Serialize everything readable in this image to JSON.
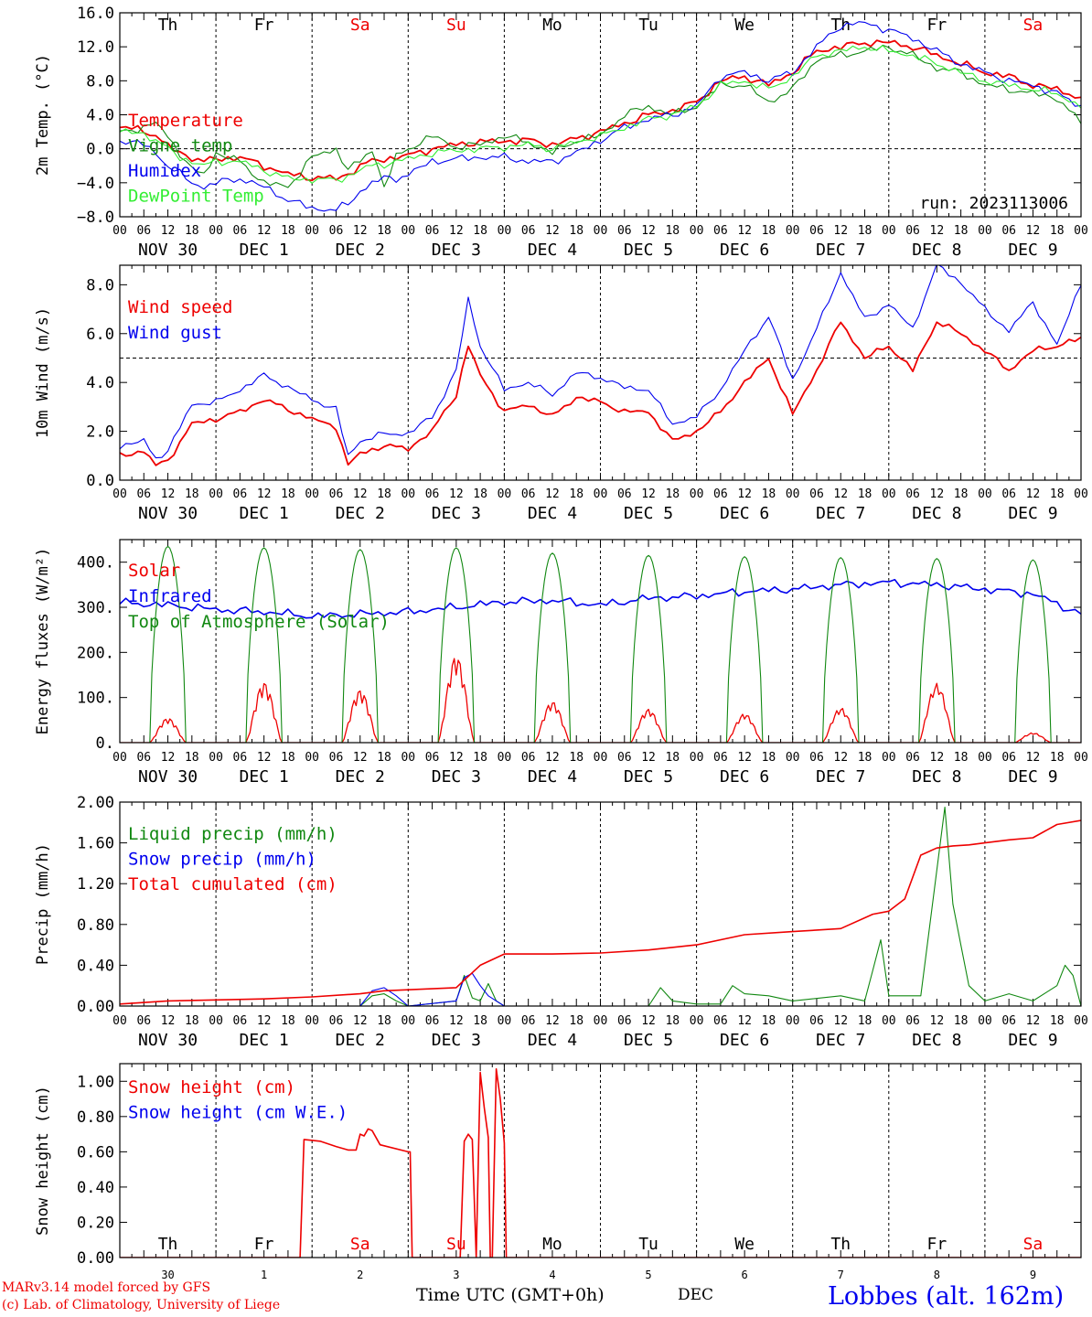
{
  "colors": {
    "red": "#ee0000",
    "blue": "#0000ee",
    "dark_green": "#118811",
    "light_green": "#33ee33",
    "axis": "#000000",
    "weekend": "#ee0000"
  },
  "days": [
    "Th",
    "Fr",
    "Sa",
    "Su",
    "Mo",
    "Tu",
    "We",
    "Th",
    "Fr",
    "Sa"
  ],
  "weekend_days": [
    "Sa",
    "Su"
  ],
  "hour_labels": [
    "00",
    "06",
    "12",
    "18"
  ],
  "date_labels": [
    "NOV 30",
    "DEC  1",
    "DEC  2",
    "DEC  3",
    "DEC  4",
    "DEC  5",
    "DEC  6",
    "DEC  7",
    "DEC  8",
    "DEC  9"
  ],
  "bottom_day_numbers": [
    "30",
    "1",
    "2",
    "3",
    "4",
    "5",
    "6",
    "7",
    "8",
    "9"
  ],
  "footer": {
    "model_line1": "MARv3.14 model forced by GFS",
    "model_line2": "(c) Lab. of Climatology, University of Liege",
    "xlabel": "Time UTC (GMT+0h)",
    "month": "DEC",
    "station": "Lobbes (alt. 162m)"
  },
  "chart_data": [
    {
      "type": "line",
      "ylabel": "2m Temp. (°C)",
      "ylim": [
        -8,
        16
      ],
      "yticks": [
        -8,
        -4,
        0,
        4,
        8,
        12,
        16
      ],
      "ytick_labels": [
        "−8.0",
        "−4.0",
        "0.0",
        "4.0",
        "8.0",
        "12.0",
        "16.0"
      ],
      "reference_line": 0,
      "annotation": "run: 2023113006",
      "x_unit": "hours since Nov 30 00 UTC",
      "x": [
        0,
        6,
        9,
        12,
        15,
        18,
        21,
        24,
        30,
        36,
        42,
        48,
        54,
        57,
        60,
        63,
        66,
        69,
        72,
        78,
        84,
        90,
        96,
        102,
        108,
        114,
        120,
        126,
        132,
        138,
        144,
        150,
        156,
        162,
        168,
        174,
        180,
        186,
        192,
        198,
        204,
        210,
        216,
        222,
        228,
        234,
        240
      ],
      "series": [
        {
          "name": "Temperature",
          "color": "red",
          "width": 1.8,
          "values": [
            2.5,
            2.2,
            1.5,
            0.3,
            -0.5,
            -1.0,
            -1.5,
            -1.2,
            -1.0,
            -2.0,
            -3.0,
            -3.4,
            -3.5,
            -3.0,
            -2.0,
            -1.5,
            -1.2,
            -1.0,
            -0.8,
            0.0,
            0.5,
            0.8,
            0.9,
            1.0,
            0.5,
            1.2,
            2.0,
            3.0,
            4.0,
            4.5,
            5.5,
            8.0,
            8.5,
            7.5,
            9.0,
            11.5,
            12.0,
            12.5,
            12.5,
            12.0,
            11.0,
            10.0,
            9.0,
            8.5,
            7.5,
            7.0,
            6.0
          ]
        },
        {
          "name": "Vigne temp",
          "color": "dark_green",
          "width": 1.1,
          "values": [
            2.0,
            2.5,
            3.0,
            1.5,
            -0.5,
            -2.5,
            -3.0,
            -0.5,
            -1.5,
            -4.0,
            -4.5,
            -1.0,
            0.0,
            -2.5,
            -1.5,
            0.0,
            -4.5,
            -1.0,
            0.0,
            1.5,
            0.2,
            0.5,
            1.5,
            0.8,
            -0.5,
            1.0,
            1.5,
            4.0,
            5.0,
            4.0,
            5.0,
            7.5,
            7.5,
            5.5,
            7.0,
            10.5,
            11.0,
            11.5,
            12.0,
            11.0,
            9.5,
            9.0,
            7.5,
            7.0,
            6.5,
            6.0,
            3.0
          ]
        },
        {
          "name": "Humidex",
          "color": "blue",
          "width": 1.1,
          "values": [
            1.0,
            0.5,
            -0.5,
            -2.0,
            -3.0,
            -4.0,
            -4.5,
            -4.0,
            -3.5,
            -4.5,
            -6.0,
            -7.0,
            -7.2,
            -6.5,
            -5.0,
            -4.0,
            -3.5,
            -3.5,
            -3.0,
            -1.5,
            -1.2,
            -1.0,
            -1.0,
            -1.5,
            -1.5,
            -0.5,
            1.0,
            2.5,
            3.5,
            4.0,
            5.0,
            8.5,
            9.0,
            8.0,
            9.0,
            12.0,
            14.5,
            14.8,
            14.0,
            13.0,
            11.5,
            10.0,
            9.0,
            8.0,
            7.5,
            6.5,
            5.0
          ]
        },
        {
          "name": "DewPoint Temp",
          "color": "light_green",
          "width": 1.1,
          "values": [
            2.0,
            1.8,
            1.0,
            0.0,
            -1.0,
            -1.5,
            -2.0,
            -1.5,
            -1.5,
            -2.5,
            -3.5,
            -3.6,
            -3.7,
            -3.2,
            -2.5,
            -2.0,
            -1.8,
            -1.5,
            -1.2,
            -0.5,
            -0.2,
            0.0,
            0.2,
            0.5,
            0.0,
            0.8,
            1.5,
            2.5,
            3.5,
            4.0,
            5.0,
            7.5,
            8.0,
            7.0,
            8.5,
            11.0,
            11.5,
            12.0,
            11.5,
            11.0,
            10.0,
            9.0,
            8.0,
            7.5,
            7.0,
            6.5,
            5.0
          ]
        }
      ],
      "legend_placement": "top-left"
    },
    {
      "type": "line",
      "ylabel": "10m Wind (m/s)",
      "ylim": [
        0,
        8.8
      ],
      "yticks": [
        0,
        2,
        4,
        6,
        8
      ],
      "ytick_labels": [
        "0.0",
        "2.0",
        "4.0",
        "6.0",
        "8.0"
      ],
      "reference_line": 5,
      "x_unit": "hours since Nov 30 00 UTC",
      "x": [
        0,
        6,
        9,
        12,
        18,
        24,
        30,
        36,
        42,
        48,
        54,
        57,
        60,
        66,
        72,
        78,
        81,
        84,
        87,
        90,
        96,
        102,
        108,
        114,
        120,
        126,
        132,
        138,
        144,
        150,
        156,
        162,
        168,
        174,
        180,
        186,
        192,
        198,
        204,
        210,
        216,
        222,
        228,
        234,
        240
      ],
      "series": [
        {
          "name": "Wind speed",
          "color": "red",
          "width": 1.8,
          "values": [
            1.0,
            1.2,
            0.6,
            0.8,
            2.3,
            2.5,
            2.8,
            3.3,
            2.9,
            2.5,
            2.2,
            0.6,
            1.1,
            1.4,
            1.3,
            2.0,
            2.8,
            3.5,
            5.5,
            4.3,
            2.8,
            3.1,
            2.6,
            3.4,
            3.2,
            2.8,
            2.8,
            1.6,
            2.0,
            2.8,
            4.0,
            5.0,
            2.7,
            4.5,
            6.5,
            5.0,
            5.5,
            4.5,
            6.5,
            6.0,
            5.3,
            4.5,
            5.3,
            5.5,
            5.8
          ]
        },
        {
          "name": "Wind gust",
          "color": "blue",
          "width": 1.1,
          "values": [
            1.4,
            1.6,
            0.9,
            1.2,
            3.1,
            3.2,
            3.7,
            4.3,
            3.8,
            3.3,
            2.9,
            1.0,
            1.6,
            1.9,
            1.9,
            2.6,
            3.5,
            4.5,
            7.4,
            5.5,
            3.7,
            4.0,
            3.5,
            4.4,
            4.2,
            3.8,
            3.7,
            2.3,
            2.6,
            3.7,
            5.3,
            6.7,
            4.1,
            6.2,
            8.5,
            6.6,
            7.2,
            6.2,
            8.8,
            8.1,
            7.0,
            6.1,
            7.3,
            5.5,
            8.1
          ]
        }
      ],
      "legend_placement": "top-left"
    },
    {
      "type": "line",
      "ylabel": "Energy fluxes (W/m²)",
      "ylim": [
        0,
        450
      ],
      "yticks": [
        0,
        100,
        200,
        300,
        400
      ],
      "ytick_labels": [
        "0.",
        "100.",
        "200.",
        "300.",
        "400."
      ],
      "x_unit": "hours since Nov 30 00 UTC",
      "series": [
        {
          "name": "Solar",
          "color": "red",
          "width": 1.3,
          "daily_peaks": [
            55,
            135,
            118,
            195,
            92,
            75,
            65,
            78,
            132,
            22
          ]
        },
        {
          "name": "Infrared",
          "color": "blue",
          "width": 1.6,
          "x": [
            0,
            12,
            24,
            36,
            48,
            60,
            72,
            84,
            96,
            108,
            120,
            132,
            144,
            156,
            168,
            180,
            192,
            204,
            216,
            228,
            240
          ],
          "values": [
            310,
            305,
            295,
            290,
            280,
            285,
            290,
            300,
            312,
            315,
            305,
            320,
            325,
            335,
            340,
            350,
            355,
            350,
            340,
            330,
            285
          ]
        },
        {
          "name": "Top of Atmosphere (Solar)",
          "color": "dark_green",
          "width": 1.1,
          "daily_peaks": [
            435,
            432,
            428,
            432,
            420,
            415,
            412,
            410,
            408,
            405
          ]
        }
      ],
      "legend_placement": "top-left"
    },
    {
      "type": "line",
      "ylabel": "Precip (mm/h)",
      "ylim": [
        0,
        2.0
      ],
      "yticks": [
        0,
        0.4,
        0.8,
        1.2,
        1.6,
        2.0
      ],
      "ytick_labels": [
        "0.00",
        "0.40",
        "0.80",
        "1.20",
        "1.60",
        "2.00"
      ],
      "x_unit": "hours since Nov 30 00 UTC",
      "series": [
        {
          "name": "Liquid precip (mm/h)",
          "color": "dark_green",
          "width": 1.1,
          "x": [
            0,
            60,
            63,
            66,
            69,
            72,
            84,
            86,
            88,
            90,
            92,
            94,
            96,
            132,
            135,
            138,
            144,
            150,
            153,
            156,
            162,
            168,
            180,
            186,
            188,
            190,
            192,
            200,
            206,
            208,
            210,
            212,
            216,
            222,
            228,
            234,
            236,
            238,
            240
          ],
          "values": [
            0,
            0,
            0.1,
            0.12,
            0.05,
            0,
            0.05,
            0.3,
            0.08,
            0.05,
            0.22,
            0.05,
            0,
            0,
            0.18,
            0.05,
            0.02,
            0.02,
            0.2,
            0.12,
            0.1,
            0.05,
            0.1,
            0.05,
            0.35,
            0.65,
            0.1,
            0.1,
            1.95,
            1.0,
            0.6,
            0.2,
            0.05,
            0.12,
            0.05,
            0.2,
            0.4,
            0.3,
            0
          ]
        },
        {
          "name": "Snow precip (mm/h)",
          "color": "blue",
          "width": 1.1,
          "x": [
            0,
            60,
            63,
            66,
            69,
            72,
            84,
            86,
            88,
            90,
            92,
            94,
            96,
            240
          ],
          "values": [
            0,
            0,
            0.15,
            0.18,
            0.1,
            0,
            0.05,
            0.28,
            0.32,
            0.2,
            0.1,
            0.05,
            0,
            0
          ]
        },
        {
          "name": "Total cumulated (cm)",
          "color": "red",
          "width": 1.6,
          "x": [
            0,
            12,
            24,
            36,
            48,
            60,
            66,
            72,
            84,
            90,
            96,
            108,
            120,
            132,
            144,
            156,
            168,
            180,
            188,
            192,
            196,
            200,
            204,
            208,
            212,
            216,
            222,
            228,
            234,
            240
          ],
          "values": [
            0.02,
            0.05,
            0.06,
            0.07,
            0.09,
            0.12,
            0.15,
            0.16,
            0.18,
            0.4,
            0.51,
            0.51,
            0.52,
            0.55,
            0.6,
            0.7,
            0.73,
            0.76,
            0.9,
            0.93,
            1.05,
            1.48,
            1.55,
            1.57,
            1.58,
            1.6,
            1.63,
            1.65,
            1.78,
            1.82
          ]
        }
      ],
      "legend_placement": "top-left"
    },
    {
      "type": "line",
      "ylabel": "Snow height (cm)",
      "ylim": [
        0,
        1.1
      ],
      "yticks": [
        0,
        0.2,
        0.4,
        0.6,
        0.8,
        1.0
      ],
      "ytick_labels": [
        "0.00",
        "0.20",
        "0.40",
        "0.60",
        "0.80",
        "1.00"
      ],
      "x_unit": "hours since Nov 30 00 UTC",
      "series": [
        {
          "name": "Snow height (cm)",
          "color": "red",
          "width": 1.6,
          "x": [
            0,
            45,
            46,
            50,
            54,
            57,
            59,
            60,
            61,
            62,
            63,
            65,
            72,
            72.5,
            73,
            85,
            86,
            87,
            88,
            89,
            90,
            91,
            92,
            92.5,
            93,
            94,
            95,
            96,
            96.5,
            240
          ],
          "values": [
            0,
            0,
            0.67,
            0.66,
            0.63,
            0.61,
            0.61,
            0.7,
            0.69,
            0.73,
            0.72,
            0.64,
            0.6,
            0.6,
            0,
            0,
            0.66,
            0.7,
            0.67,
            0,
            1.05,
            0.85,
            0.68,
            0,
            0,
            1.07,
            0.9,
            0.65,
            0,
            0
          ]
        },
        {
          "name": "Snow height (cm W.E.)",
          "color": "blue",
          "width": 1.1,
          "x": [
            0,
            240
          ],
          "values": [
            0,
            0
          ]
        }
      ],
      "legend_placement": "top-left"
    }
  ]
}
